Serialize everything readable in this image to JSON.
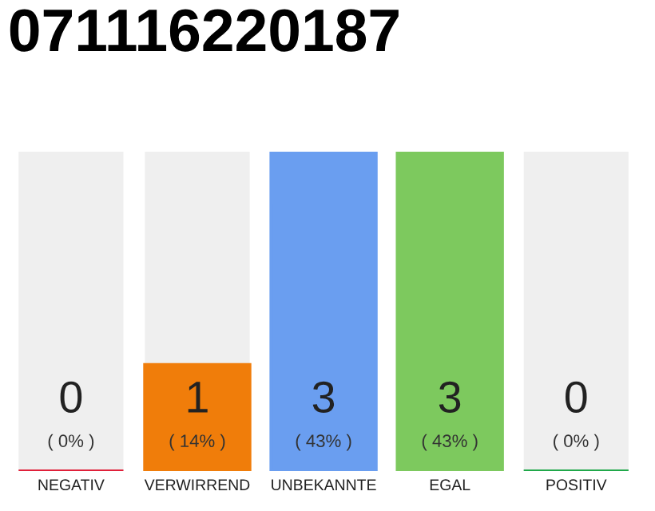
{
  "chart_data": {
    "type": "bar",
    "title": "071116220187",
    "categories": [
      "NEGATIV",
      "VERWIRREND",
      "UNBEKANNTE",
      "EGAL",
      "POSITIV"
    ],
    "values": [
      0,
      1,
      3,
      3,
      0
    ],
    "colors": [
      "#e0203a",
      "#f07d0a",
      "#6a9ef0",
      "#7dc95e",
      "#20a84a"
    ],
    "ylim": [
      0,
      3
    ],
    "tick_labels": "x",
    "data_labels": true,
    "grid": false,
    "legend": false,
    "annotations": [
      "( 0% )",
      "( 14% )",
      "( 43% )",
      "( 43% )",
      "( 0% )"
    ]
  }
}
